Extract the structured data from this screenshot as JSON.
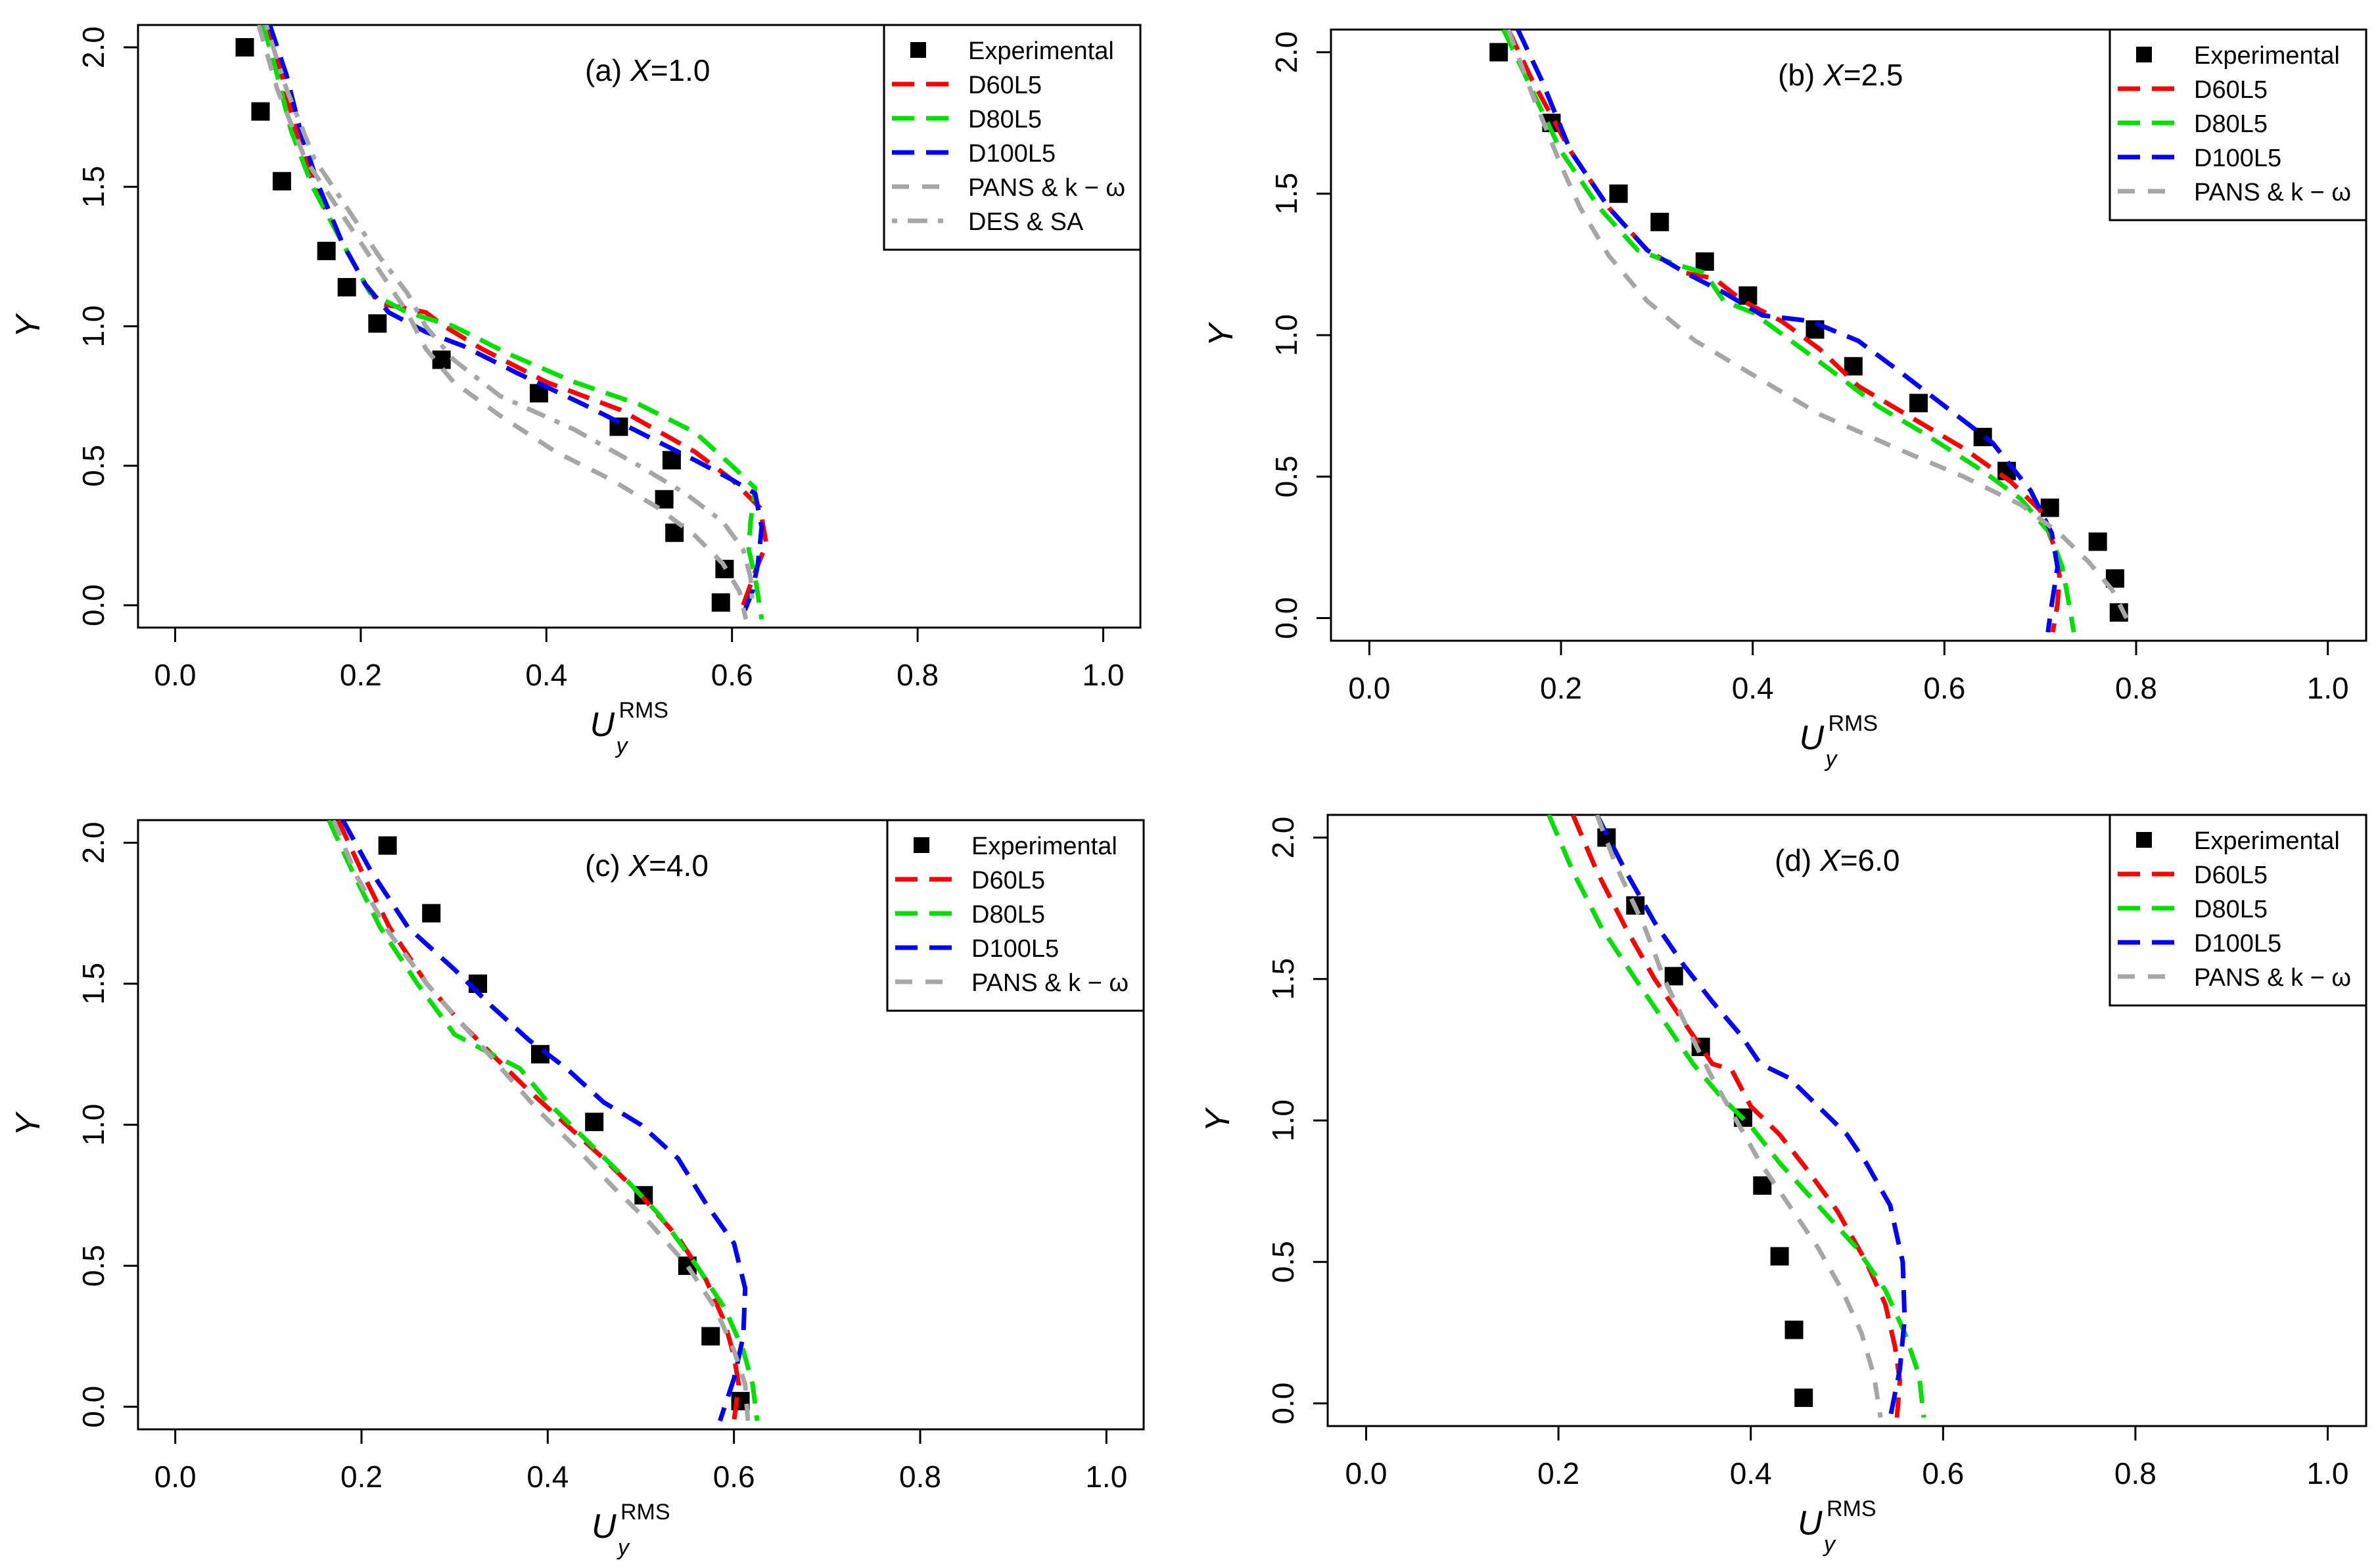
{
  "series_styles": [
    {
      "key": "exp",
      "name": "Experimental",
      "color": "#000000",
      "kind": "points"
    },
    {
      "key": "d60",
      "name": "D60L5",
      "color": "#ff0000",
      "kind": "longdash"
    },
    {
      "key": "d80",
      "name": "D80L5",
      "color": "#00e000",
      "kind": "longdash"
    },
    {
      "key": "d100",
      "name": "D100L5",
      "color": "#0000ff",
      "kind": "longdash"
    },
    {
      "key": "pans",
      "name": "PANS & k − ω",
      "color": "#a6a6a6",
      "kind": "dash"
    },
    {
      "key": "des",
      "name": "DES & SA",
      "color": "#a6a6a6",
      "kind": "dashdot"
    }
  ],
  "chart_data": [
    {
      "type": "line",
      "title_prefix": "(a) ",
      "title_var": "X",
      "title_value": "=1.0",
      "xlabel": "U",
      "xlabel_sub": "y",
      "xlabel_sup": "RMS",
      "ylabel": "Y",
      "xlim": [
        -0.04,
        1.04
      ],
      "ylim": [
        -0.08,
        2.08
      ],
      "xticks": [
        "0.0",
        "0.2",
        "0.4",
        "0.6",
        "0.8",
        "1.0"
      ],
      "yticks": [
        "0.0",
        "0.5",
        "1.0",
        "1.5",
        "2.0"
      ],
      "legend_position": "top-right",
      "legend": [
        "Experimental",
        "D60L5",
        "D80L5",
        "D100L5",
        "PANS & k − ω",
        "DES & SA"
      ],
      "series": [
        {
          "name": "Experimental",
          "key": "exp",
          "x": [
            0.075,
            0.092,
            0.115,
            0.163,
            0.185,
            0.218,
            0.287,
            0.392,
            0.478,
            0.535,
            0.527,
            0.538,
            0.592,
            0.588
          ],
          "y": [
            2.0,
            1.77,
            1.52,
            1.27,
            1.14,
            1.01,
            0.88,
            0.76,
            0.64,
            0.52,
            0.38,
            0.26,
            0.13,
            0.01
          ]
        },
        {
          "name": "D60L5",
          "key": "d60",
          "x": [
            0.1,
            0.115,
            0.13,
            0.15,
            0.18,
            0.205,
            0.22,
            0.24,
            0.27,
            0.29,
            0.33,
            0.4,
            0.48,
            0.56,
            0.6,
            0.63,
            0.637,
            0.625,
            0.612
          ],
          "y": [
            2.08,
            1.9,
            1.7,
            1.5,
            1.3,
            1.15,
            1.08,
            1.07,
            1.05,
            1.0,
            0.92,
            0.8,
            0.7,
            0.55,
            0.45,
            0.35,
            0.22,
            0.12,
            0.0
          ]
        },
        {
          "name": "D80L5",
          "key": "d80",
          "x": [
            0.095,
            0.11,
            0.125,
            0.148,
            0.18,
            0.21,
            0.25,
            0.3,
            0.36,
            0.43,
            0.5,
            0.56,
            0.6,
            0.625,
            0.62,
            0.618,
            0.625,
            0.632
          ],
          "y": [
            2.08,
            1.9,
            1.7,
            1.5,
            1.3,
            1.12,
            1.05,
            1.0,
            0.9,
            0.8,
            0.72,
            0.62,
            0.5,
            0.42,
            0.3,
            0.2,
            0.1,
            -0.05
          ]
        },
        {
          "name": "D100L5",
          "key": "d100",
          "x": [
            0.102,
            0.12,
            0.135,
            0.155,
            0.18,
            0.205,
            0.23,
            0.27,
            0.31,
            0.37,
            0.44,
            0.5,
            0.56,
            0.6,
            0.625,
            0.632,
            0.628,
            0.622,
            0.61
          ],
          "y": [
            2.08,
            1.9,
            1.7,
            1.5,
            1.3,
            1.15,
            1.05,
            0.98,
            0.93,
            0.83,
            0.72,
            0.62,
            0.52,
            0.45,
            0.4,
            0.28,
            0.15,
            0.05,
            -0.05
          ]
        },
        {
          "name": "PANS & k − ω",
          "key": "pans",
          "x": [
            0.09,
            0.11,
            0.14,
            0.18,
            0.22,
            0.25,
            0.27,
            0.3,
            0.35,
            0.41,
            0.47,
            0.52,
            0.56,
            0.59,
            0.608,
            0.615
          ],
          "y": [
            2.08,
            1.85,
            1.6,
            1.4,
            1.2,
            1.05,
            0.92,
            0.8,
            0.68,
            0.55,
            0.45,
            0.35,
            0.25,
            0.15,
            0.05,
            -0.05
          ]
        },
        {
          "name": "DES & SA",
          "key": "des",
          "x": [
            0.098,
            0.12,
            0.15,
            0.19,
            0.22,
            0.25,
            0.27,
            0.3,
            0.35,
            0.43,
            0.5,
            0.55,
            0.59,
            0.612,
            0.62,
            0.622
          ],
          "y": [
            2.08,
            1.85,
            1.6,
            1.4,
            1.25,
            1.12,
            1.0,
            0.88,
            0.75,
            0.63,
            0.5,
            0.4,
            0.3,
            0.2,
            0.1,
            0.0
          ]
        }
      ]
    },
    {
      "type": "line",
      "title_prefix": "(b) ",
      "title_var": "X",
      "title_value": "=2.5",
      "xlabel": "U",
      "xlabel_sub": "y",
      "xlabel_sup": "RMS",
      "ylabel": "Y",
      "xlim": [
        -0.04,
        1.04
      ],
      "ylim": [
        -0.08,
        2.08
      ],
      "xticks": [
        "0.0",
        "0.2",
        "0.4",
        "0.6",
        "0.8",
        "1.0"
      ],
      "yticks": [
        "0.0",
        "0.5",
        "1.0",
        "1.5",
        "2.0"
      ],
      "legend_position": "top-right",
      "legend": [
        "Experimental",
        "D60L5",
        "D80L5",
        "D100L5",
        "PANS & k − ω"
      ],
      "series": [
        {
          "name": "Experimental",
          "key": "exp",
          "x": [
            0.135,
            0.19,
            0.26,
            0.303,
            0.35,
            0.395,
            0.465,
            0.505,
            0.573,
            0.64,
            0.665,
            0.71,
            0.76,
            0.778,
            0.782
          ],
          "y": [
            2.0,
            1.75,
            1.5,
            1.4,
            1.26,
            1.14,
            1.02,
            0.89,
            0.76,
            0.64,
            0.52,
            0.39,
            0.27,
            0.14,
            0.02
          ]
        },
        {
          "name": "D60L5",
          "key": "d60",
          "x": [
            0.145,
            0.17,
            0.21,
            0.25,
            0.29,
            0.33,
            0.36,
            0.39,
            0.43,
            0.47,
            0.51,
            0.56,
            0.62,
            0.67,
            0.7,
            0.715,
            0.72,
            0.718,
            0.713
          ],
          "y": [
            2.08,
            1.9,
            1.65,
            1.45,
            1.3,
            1.22,
            1.2,
            1.12,
            1.05,
            0.95,
            0.82,
            0.72,
            0.6,
            0.48,
            0.38,
            0.25,
            0.15,
            0.05,
            -0.05
          ]
        },
        {
          "name": "D80L5",
          "key": "d80",
          "x": [
            0.14,
            0.165,
            0.2,
            0.24,
            0.28,
            0.32,
            0.35,
            0.37,
            0.4,
            0.44,
            0.48,
            0.53,
            0.58,
            0.64,
            0.68,
            0.71,
            0.723,
            0.73,
            0.735
          ],
          "y": [
            2.08,
            1.9,
            1.65,
            1.45,
            1.3,
            1.25,
            1.22,
            1.12,
            1.08,
            0.98,
            0.88,
            0.75,
            0.65,
            0.52,
            0.42,
            0.3,
            0.18,
            0.05,
            -0.05
          ]
        },
        {
          "name": "D100L5",
          "key": "d100",
          "x": [
            0.155,
            0.18,
            0.21,
            0.25,
            0.29,
            0.33,
            0.37,
            0.41,
            0.46,
            0.51,
            0.55,
            0.6,
            0.65,
            0.69,
            0.712,
            0.718,
            0.712,
            0.708
          ],
          "y": [
            2.08,
            1.9,
            1.65,
            1.45,
            1.3,
            1.22,
            1.15,
            1.07,
            1.05,
            0.98,
            0.88,
            0.75,
            0.62,
            0.45,
            0.3,
            0.18,
            0.05,
            -0.05
          ]
        },
        {
          "name": "PANS & k − ω",
          "key": "pans",
          "x": [
            0.145,
            0.17,
            0.2,
            0.22,
            0.25,
            0.29,
            0.34,
            0.4,
            0.47,
            0.55,
            0.62,
            0.68,
            0.72,
            0.75,
            0.775,
            0.79
          ],
          "y": [
            2.08,
            1.85,
            1.6,
            1.45,
            1.28,
            1.12,
            0.98,
            0.86,
            0.72,
            0.6,
            0.5,
            0.4,
            0.3,
            0.2,
            0.1,
            0.0
          ]
        }
      ]
    },
    {
      "type": "line",
      "title_prefix": "(c) ",
      "title_var": "X",
      "title_value": "=4.0",
      "xlabel": "U",
      "xlabel_sub": "y",
      "xlabel_sup": "RMS",
      "ylabel": "Y",
      "xlim": [
        -0.04,
        1.04
      ],
      "ylim": [
        -0.08,
        2.08
      ],
      "xticks": [
        "0.0",
        "0.2",
        "0.4",
        "0.6",
        "0.8",
        "1.0"
      ],
      "yticks": [
        "0.0",
        "0.5",
        "1.0",
        "1.5",
        "2.0"
      ],
      "legend_position": "top-right",
      "legend": [
        "Experimental",
        "D60L5",
        "D80L5",
        "D100L5",
        "PANS & k − ω"
      ],
      "series": [
        {
          "name": "Experimental",
          "key": "exp",
          "x": [
            0.228,
            0.275,
            0.325,
            0.392,
            0.45,
            0.503,
            0.55,
            0.575,
            0.607
          ],
          "y": [
            1.99,
            1.75,
            1.5,
            1.25,
            1.01,
            0.75,
            0.5,
            0.25,
            0.02
          ]
        },
        {
          "name": "D60L5",
          "key": "d60",
          "x": [
            0.175,
            0.2,
            0.23,
            0.27,
            0.31,
            0.34,
            0.38,
            0.42,
            0.46,
            0.5,
            0.54,
            0.57,
            0.59,
            0.6,
            0.605,
            0.6
          ],
          "y": [
            2.08,
            1.9,
            1.7,
            1.5,
            1.35,
            1.25,
            1.12,
            1.0,
            0.88,
            0.75,
            0.6,
            0.45,
            0.3,
            0.18,
            0.08,
            -0.05
          ]
        },
        {
          "name": "D80L5",
          "key": "d80",
          "x": [
            0.165,
            0.19,
            0.22,
            0.26,
            0.3,
            0.34,
            0.37,
            0.4,
            0.44,
            0.48,
            0.52,
            0.56,
            0.59,
            0.61,
            0.62,
            0.625
          ],
          "y": [
            2.08,
            1.9,
            1.7,
            1.5,
            1.32,
            1.25,
            1.2,
            1.08,
            0.95,
            0.82,
            0.68,
            0.5,
            0.35,
            0.2,
            0.08,
            -0.05
          ]
        },
        {
          "name": "D100L5",
          "key": "d100",
          "x": [
            0.18,
            0.21,
            0.25,
            0.3,
            0.34,
            0.38,
            0.42,
            0.46,
            0.5,
            0.54,
            0.57,
            0.6,
            0.612,
            0.61,
            0.6,
            0.585
          ],
          "y": [
            2.08,
            1.9,
            1.7,
            1.55,
            1.42,
            1.3,
            1.2,
            1.08,
            1.0,
            0.88,
            0.72,
            0.58,
            0.42,
            0.25,
            0.1,
            -0.05
          ]
        },
        {
          "name": "PANS & k − ω",
          "key": "pans",
          "x": [
            0.17,
            0.195,
            0.23,
            0.27,
            0.31,
            0.35,
            0.39,
            0.43,
            0.47,
            0.51,
            0.55,
            0.58,
            0.6,
            0.612,
            0.615
          ],
          "y": [
            2.08,
            1.88,
            1.68,
            1.5,
            1.35,
            1.2,
            1.05,
            0.92,
            0.78,
            0.65,
            0.5,
            0.35,
            0.2,
            0.08,
            -0.05
          ]
        }
      ]
    },
    {
      "type": "line",
      "title_prefix": "(d) ",
      "title_var": "X",
      "title_value": "=6.0",
      "xlabel": "U",
      "xlabel_sub": "y",
      "xlabel_sup": "RMS",
      "ylabel": "Y",
      "xlim": [
        -0.04,
        1.04
      ],
      "ylim": [
        -0.08,
        2.08
      ],
      "xticks": [
        "0.0",
        "0.2",
        "0.4",
        "0.6",
        "0.8",
        "1.0"
      ],
      "yticks": [
        "0.0",
        "0.5",
        "1.0",
        "1.5",
        "2.0"
      ],
      "legend_position": "top-right",
      "legend": [
        "Experimental",
        "D60L5",
        "D80L5",
        "D100L5",
        "PANS & k − ω"
      ],
      "series": [
        {
          "name": "Experimental",
          "key": "exp",
          "x": [
            0.25,
            0.28,
            0.32,
            0.348,
            0.392,
            0.412,
            0.43,
            0.445,
            0.455
          ],
          "y": [
            2.0,
            1.76,
            1.51,
            1.26,
            1.01,
            0.77,
            0.52,
            0.26,
            0.02
          ]
        },
        {
          "name": "D60L5",
          "key": "d60",
          "x": [
            0.215,
            0.24,
            0.27,
            0.3,
            0.33,
            0.36,
            0.38,
            0.4,
            0.43,
            0.46,
            0.49,
            0.52,
            0.54,
            0.55,
            0.555,
            0.552
          ],
          "y": [
            2.08,
            1.88,
            1.68,
            1.5,
            1.35,
            1.2,
            1.18,
            1.05,
            0.95,
            0.82,
            0.68,
            0.5,
            0.35,
            0.2,
            0.08,
            -0.05
          ]
        },
        {
          "name": "D80L5",
          "key": "d80",
          "x": [
            0.19,
            0.215,
            0.245,
            0.28,
            0.31,
            0.34,
            0.37,
            0.4,
            0.43,
            0.47,
            0.51,
            0.54,
            0.56,
            0.575,
            0.58
          ],
          "y": [
            2.08,
            1.88,
            1.68,
            1.5,
            1.35,
            1.2,
            1.08,
            0.98,
            0.85,
            0.7,
            0.55,
            0.4,
            0.25,
            0.1,
            -0.05
          ]
        },
        {
          "name": "D100L5",
          "key": "d100",
          "x": [
            0.24,
            0.27,
            0.3,
            0.33,
            0.36,
            0.39,
            0.41,
            0.44,
            0.47,
            0.5,
            0.52,
            0.545,
            0.558,
            0.56,
            0.555,
            0.545
          ],
          "y": [
            2.08,
            1.88,
            1.7,
            1.55,
            1.42,
            1.3,
            1.2,
            1.15,
            1.05,
            0.95,
            0.85,
            0.7,
            0.5,
            0.3,
            0.12,
            -0.05
          ]
        },
        {
          "name": "PANS & k − ω",
          "key": "pans",
          "x": [
            0.24,
            0.26,
            0.29,
            0.31,
            0.335,
            0.36,
            0.385,
            0.41,
            0.44,
            0.47,
            0.495,
            0.515,
            0.528,
            0.535
          ],
          "y": [
            2.08,
            1.9,
            1.68,
            1.5,
            1.32,
            1.15,
            1.0,
            0.85,
            0.7,
            0.55,
            0.4,
            0.25,
            0.1,
            -0.05
          ]
        }
      ]
    }
  ]
}
